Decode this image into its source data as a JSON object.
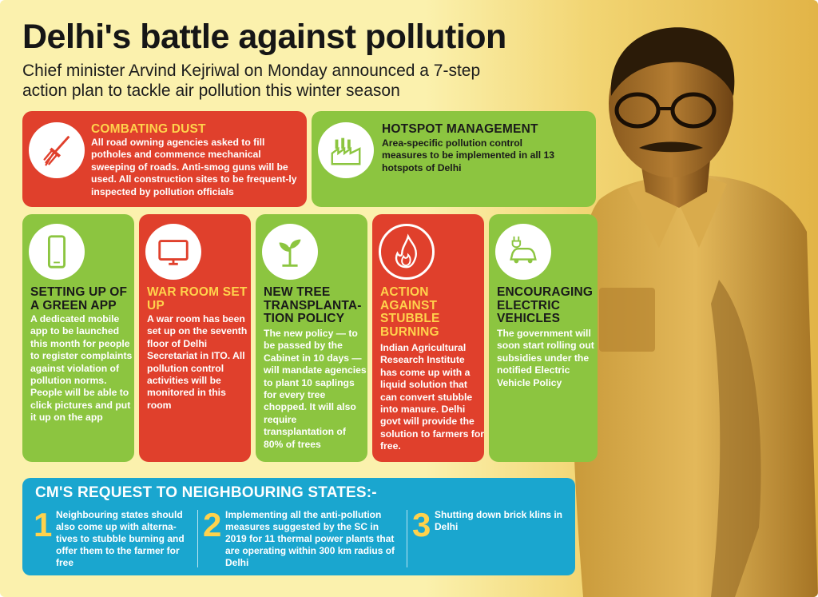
{
  "title": "Delhi's battle against pollution",
  "subtitle": "Chief minister Arvind Kejriwal on Monday announced a 7-step action plan to tackle air pollution this winter season",
  "cards": {
    "dust": {
      "heading": "COMBATING DUST",
      "text": "All road owning agencies asked to fill potholes and commence mechanical sweeping of roads. Anti-smog guns will be used. All construction sites to be frequent-ly inspected by pollution officials",
      "icon": "broom-icon"
    },
    "hotspot": {
      "heading": "HOTSPOT MANAGEMENT",
      "text": "Area-specific pollution control measures to be implemented in all 13 hotspots of Delhi",
      "icon": "factory-icon"
    },
    "app": {
      "heading": "SETTING UP OF A GREEN APP",
      "text": "A dedicated mobile app to be launched this month for people to register complaints against violation of pollution norms. People will be able to click pictures and put it up on the app",
      "icon": "smartphone-icon"
    },
    "warroom": {
      "heading": "WAR ROOM SET UP",
      "text": "A war room has been set up on the seventh floor of Delhi Secretariat in ITO. All pollution control activities will be monitored in this room",
      "icon": "monitor-icon"
    },
    "tree": {
      "heading": "NEW TREE TRANSPLANTA-TION POLICY",
      "text": "The new policy — to be passed by the Cabinet in 10 days — will mandate agencies to plant 10 saplings for every tree chopped. It will also require transplantation of 80% of trees",
      "icon": "sapling-icon"
    },
    "stubble": {
      "heading": "ACTION AGAINST STUBBLE BURNING",
      "text": "Indian Agricultural Research Institute has come up with a liquid solution that can convert stubble into manure. Delhi govt will provide the solution to farmers for free.",
      "icon": "fire-icon"
    },
    "ev": {
      "heading": "ENCOURAGING ELECTRIC VEHICLES",
      "text": "The government will soon start rolling out subsidies under the notified Electric Vehicle Policy",
      "icon": "electric-car-icon"
    }
  },
  "request": {
    "title": "CM'S REQUEST TO NEIGHBOURING STATES:-",
    "items": [
      {
        "num": "1",
        "text": "Neighbouring states should also come up with alterna-tives to stubble burning and offer them to the farmer for free"
      },
      {
        "num": "2",
        "text": "Implementing all the anti-pollution measures suggested by the SC in 2019 for 11 thermal power plants that are operating within 300 km radius of Delhi"
      },
      {
        "num": "3",
        "text": "Shutting down brick klins in Delhi"
      }
    ]
  },
  "colors": {
    "red": "#e0402c",
    "green": "#8cc540",
    "blue": "#1aa6cf",
    "yellow": "#ffd24c"
  }
}
